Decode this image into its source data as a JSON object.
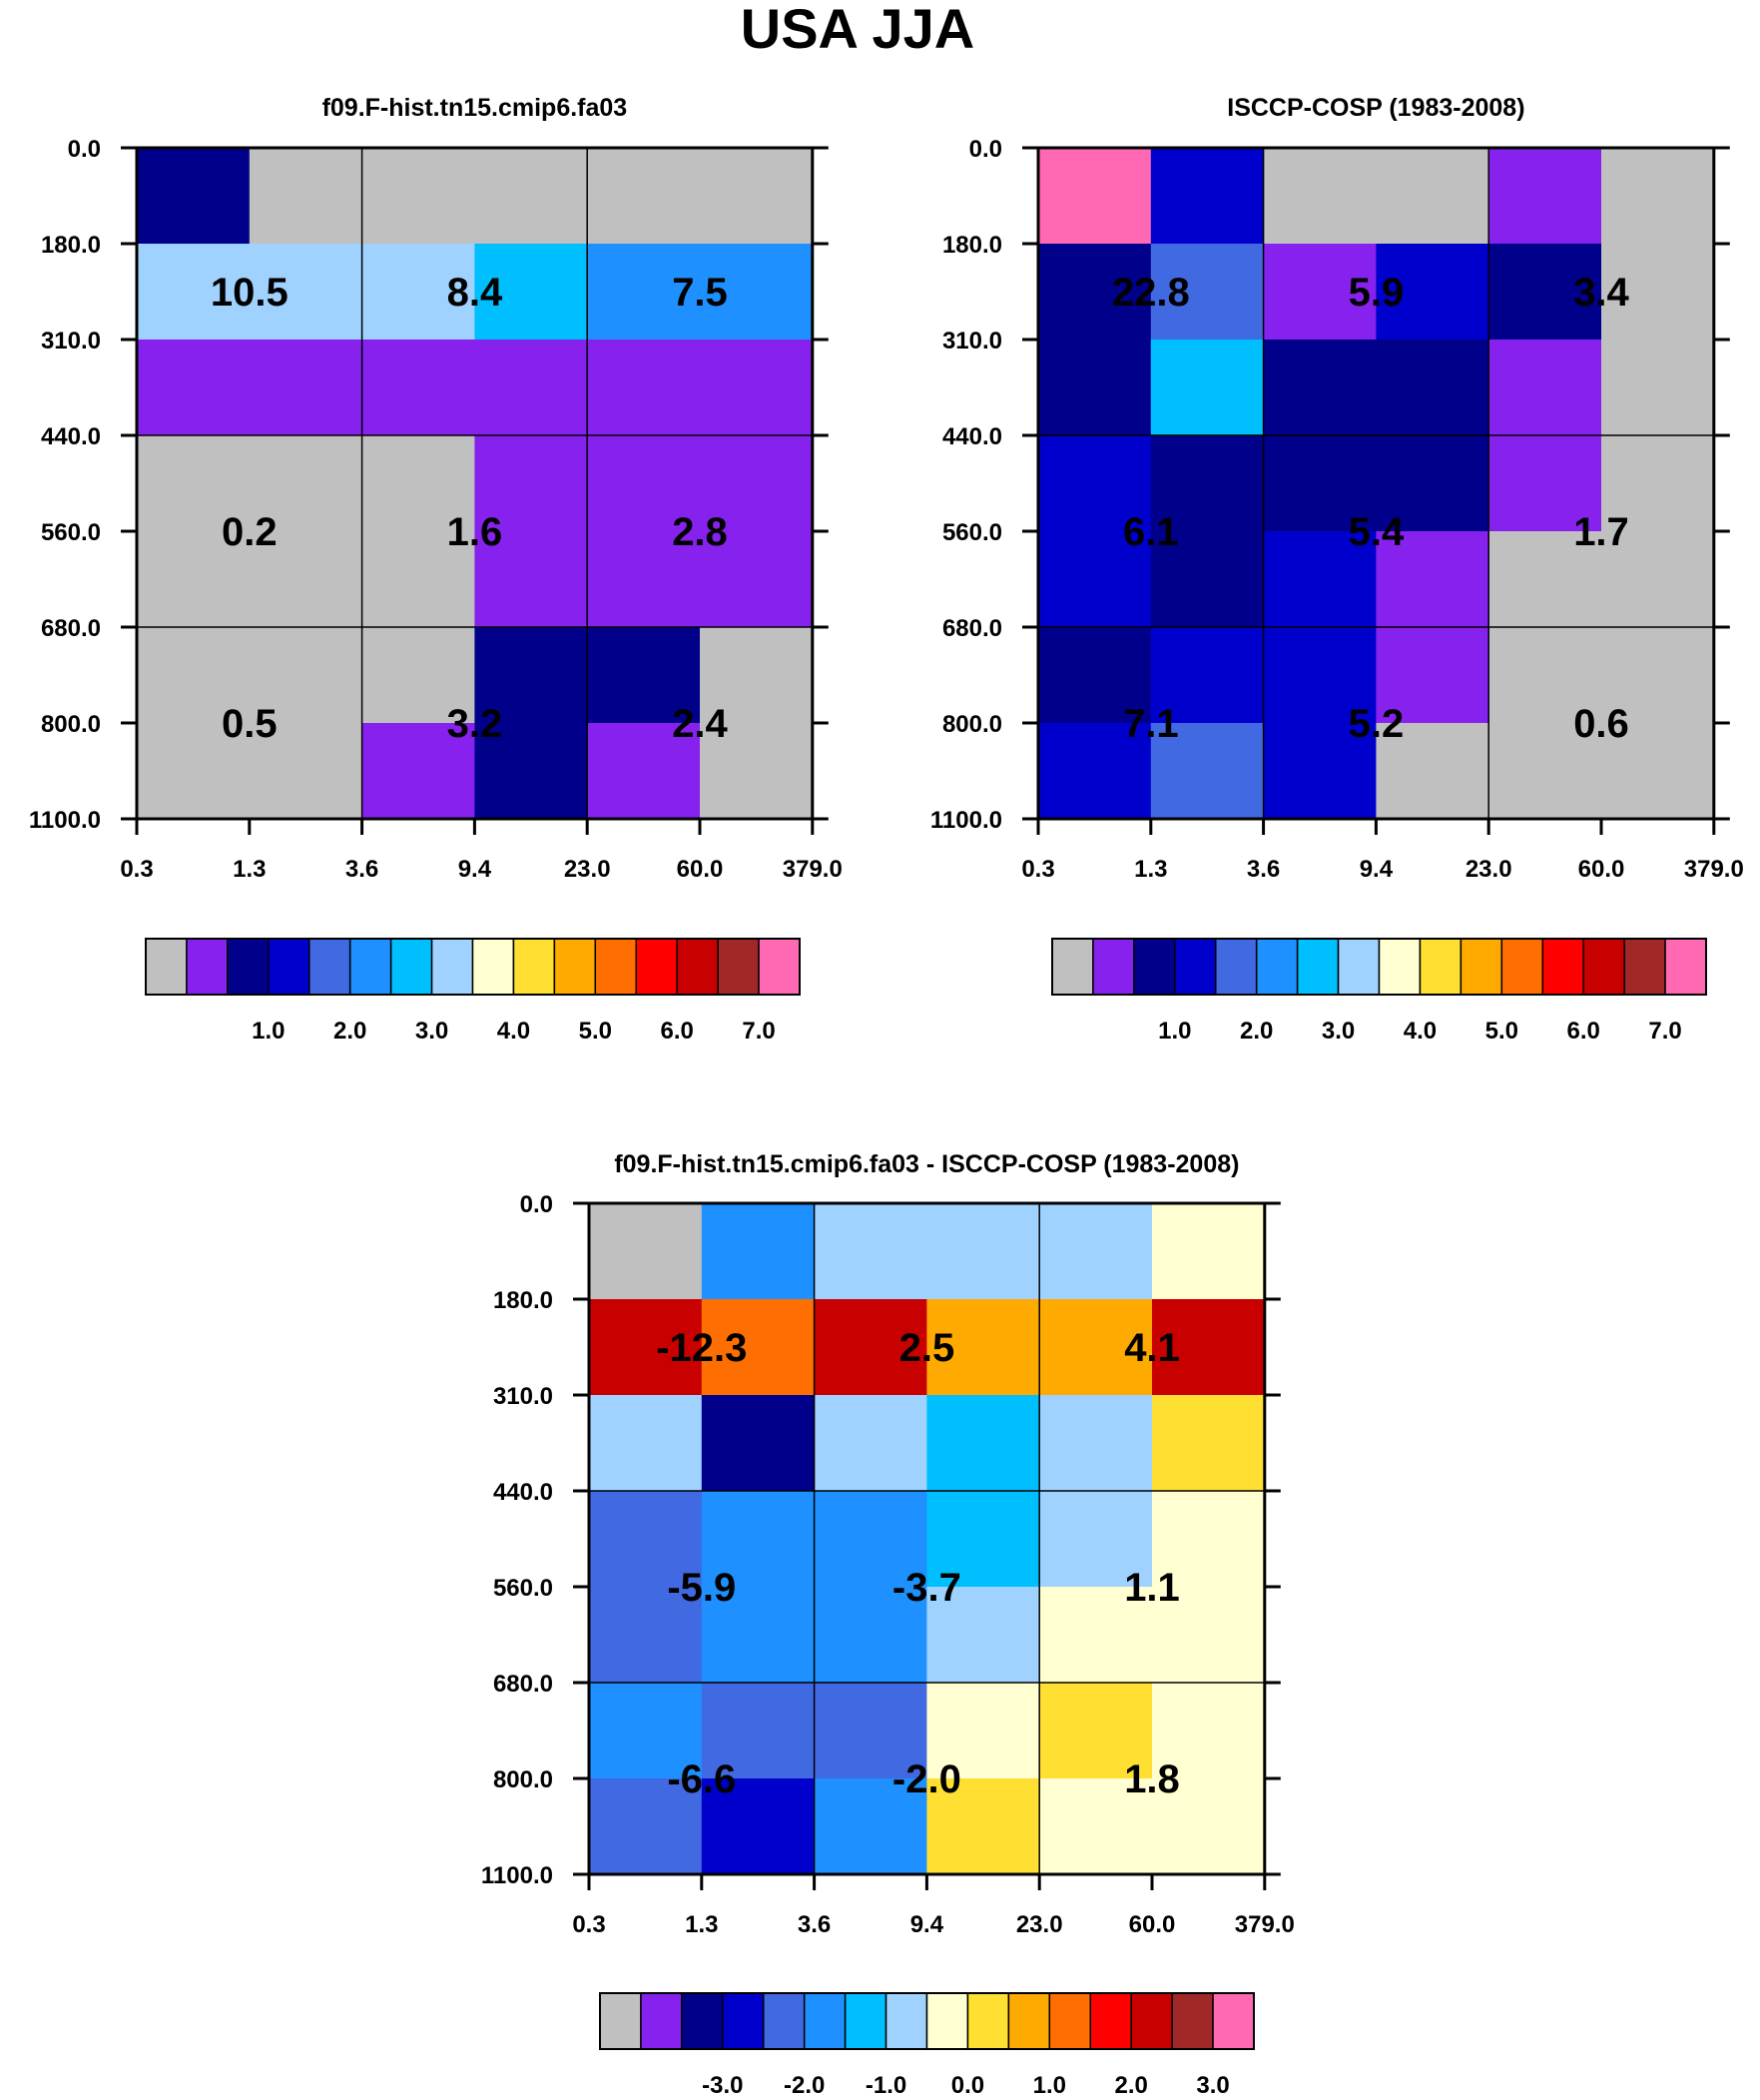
{
  "title": "USA JJA",
  "colors": {
    "abs_palette": [
      "#c0c0c0",
      "#8722ee",
      "#00008b",
      "#0000cd",
      "#4169e1",
      "#1e90ff",
      "#00bfff",
      "#a0d2ff",
      "#ffffd1",
      "#ffe032",
      "#ffaa00",
      "#ff6e00",
      "#ff0000",
      "#c80000",
      "#a02828",
      "#ff69b4"
    ],
    "diff_palette": [
      "#c0c0c0",
      "#8722ee",
      "#00008b",
      "#0000cd",
      "#4169e1",
      "#1e90ff",
      "#00bfff",
      "#a0d2ff",
      "#ffffd1",
      "#ffe032",
      "#ffaa00",
      "#ff6e00",
      "#ff0000",
      "#c80000",
      "#a02828",
      "#ff69b4"
    ]
  },
  "chart_data": [
    {
      "type": "heatmap",
      "title": "f09.F-hist.tn15.cmip6.fa03",
      "x_ticks": [
        "0.3",
        "1.3",
        "3.6",
        "9.4",
        "23.0",
        "60.0",
        "379.0"
      ],
      "y_ticks": [
        "0.0",
        "180.0",
        "310.0",
        "440.0",
        "560.0",
        "680.0",
        "800.0",
        "1100.0"
      ],
      "cell_color_index": [
        [
          2,
          0,
          0,
          0,
          0,
          0
        ],
        [
          7,
          7,
          7,
          6,
          5,
          5
        ],
        [
          1,
          1,
          1,
          1,
          1,
          1
        ],
        [
          0,
          0,
          0,
          1,
          1,
          1
        ],
        [
          0,
          0,
          0,
          1,
          1,
          1
        ],
        [
          0,
          0,
          0,
          2,
          2,
          0
        ],
        [
          0,
          0,
          1,
          2,
          1,
          0
        ]
      ],
      "group_labels": [
        {
          "text": "10.5",
          "xi": 1,
          "yi": 1.5
        },
        {
          "text": "8.4",
          "xi": 3,
          "yi": 1.5
        },
        {
          "text": "7.5",
          "xi": 5,
          "yi": 1.5
        },
        {
          "text": "0.2",
          "xi": 1,
          "yi": 4
        },
        {
          "text": "1.6",
          "xi": 3,
          "yi": 4
        },
        {
          "text": "2.8",
          "xi": 5,
          "yi": 4
        },
        {
          "text": "0.5",
          "xi": 1,
          "yi": 6
        },
        {
          "text": "3.2",
          "xi": 3,
          "yi": 6
        },
        {
          "text": "2.4",
          "xi": 5,
          "yi": 6
        }
      ],
      "colorbar_labels": [
        "1.0",
        "2.0",
        "3.0",
        "4.0",
        "5.0",
        "6.0",
        "7.0"
      ]
    },
    {
      "type": "heatmap",
      "title": "ISCCP-COSP (1983-2008)",
      "x_ticks": [
        "0.3",
        "1.3",
        "3.6",
        "9.4",
        "23.0",
        "60.0",
        "379.0"
      ],
      "y_ticks": [
        "0.0",
        "180.0",
        "310.0",
        "440.0",
        "560.0",
        "680.0",
        "800.0",
        "1100.0"
      ],
      "cell_color_index": [
        [
          15,
          3,
          0,
          0,
          1,
          0
        ],
        [
          2,
          4,
          1,
          3,
          2,
          0
        ],
        [
          2,
          6,
          2,
          2,
          1,
          0
        ],
        [
          3,
          2,
          2,
          2,
          1,
          0
        ],
        [
          3,
          2,
          3,
          1,
          0,
          0
        ],
        [
          2,
          3,
          3,
          1,
          0,
          0
        ],
        [
          3,
          4,
          3,
          0,
          0,
          0
        ]
      ],
      "group_labels": [
        {
          "text": "22.8",
          "xi": 1,
          "yi": 1.5
        },
        {
          "text": "5.9",
          "xi": 3,
          "yi": 1.5
        },
        {
          "text": "3.4",
          "xi": 5,
          "yi": 1.5
        },
        {
          "text": "6.1",
          "xi": 1,
          "yi": 4
        },
        {
          "text": "5.4",
          "xi": 3,
          "yi": 4
        },
        {
          "text": "1.7",
          "xi": 5,
          "yi": 4
        },
        {
          "text": "7.1",
          "xi": 1,
          "yi": 6
        },
        {
          "text": "5.2",
          "xi": 3,
          "yi": 6
        },
        {
          "text": "0.6",
          "xi": 5,
          "yi": 6
        }
      ],
      "colorbar_labels": [
        "1.0",
        "2.0",
        "3.0",
        "4.0",
        "5.0",
        "6.0",
        "7.0"
      ]
    },
    {
      "type": "heatmap",
      "title": "f09.F-hist.tn15.cmip6.fa03 - ISCCP-COSP (1983-2008)",
      "x_ticks": [
        "0.3",
        "1.3",
        "3.6",
        "9.4",
        "23.0",
        "60.0",
        "379.0"
      ],
      "y_ticks": [
        "0.0",
        "180.0",
        "310.0",
        "440.0",
        "560.0",
        "680.0",
        "800.0",
        "1100.0"
      ],
      "cell_color_index": [
        [
          0,
          5,
          7,
          7,
          7,
          8
        ],
        [
          13,
          11,
          13,
          10,
          10,
          13
        ],
        [
          7,
          2,
          7,
          6,
          7,
          9
        ],
        [
          4,
          5,
          5,
          6,
          7,
          8
        ],
        [
          4,
          5,
          5,
          7,
          8,
          8
        ],
        [
          5,
          4,
          4,
          8,
          9,
          8
        ],
        [
          4,
          3,
          5,
          9,
          8,
          8
        ]
      ],
      "group_labels": [
        {
          "text": "-12.3",
          "xi": 1,
          "yi": 1.5
        },
        {
          "text": "2.5",
          "xi": 3,
          "yi": 1.5
        },
        {
          "text": "4.1",
          "xi": 5,
          "yi": 1.5
        },
        {
          "text": "-5.9",
          "xi": 1,
          "yi": 4
        },
        {
          "text": "-3.7",
          "xi": 3,
          "yi": 4
        },
        {
          "text": "1.1",
          "xi": 5,
          "yi": 4
        },
        {
          "text": "-6.6",
          "xi": 1,
          "yi": 6
        },
        {
          "text": "-2.0",
          "xi": 3,
          "yi": 6
        },
        {
          "text": "1.8",
          "xi": 5,
          "yi": 6
        }
      ],
      "colorbar_labels": [
        "-3.0",
        "-2.0",
        "-1.0",
        "0.0",
        "1.0",
        "2.0",
        "3.0"
      ]
    }
  ]
}
